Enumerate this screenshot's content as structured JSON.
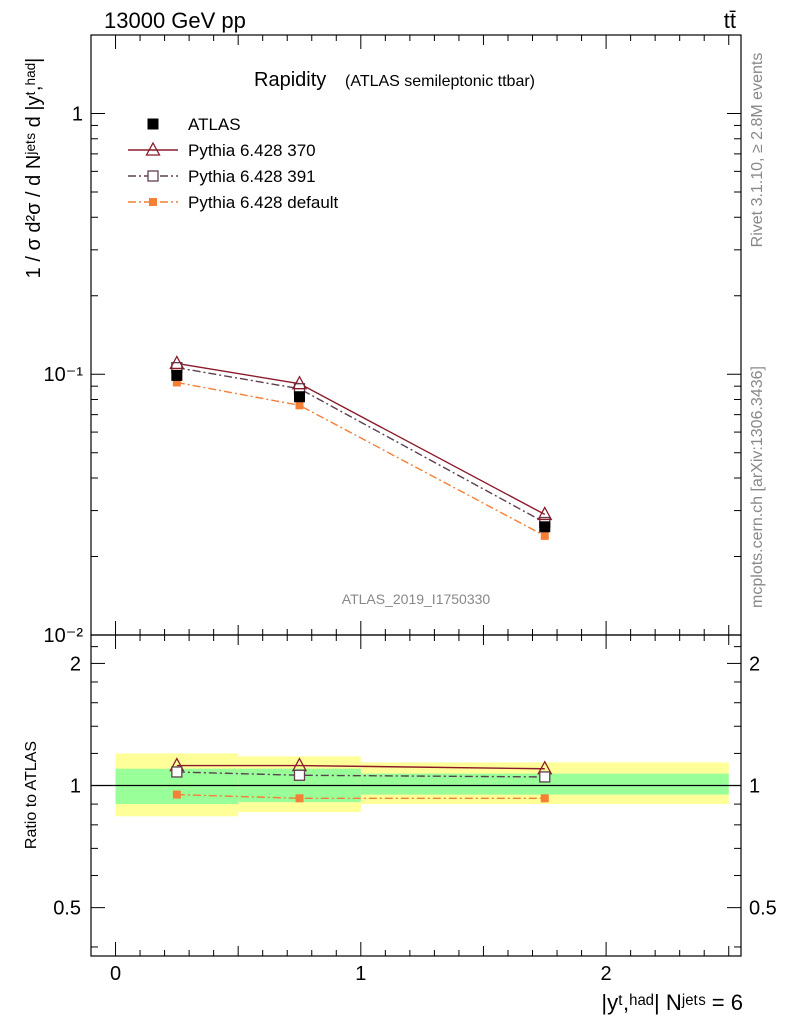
{
  "header": {
    "energy_label": "13000 GeV pp",
    "process_label": "tt̄"
  },
  "right_labels": {
    "rivet": "Rivet 3.1.10, ≥ 2.8M events",
    "mcplots": "mcplots.cern.ch [arXiv:1306.3436]"
  },
  "main_plot": {
    "title": "Rapidity",
    "subtitle": "(ATLAS semileptonic ttbar)",
    "ylabel": "1 / σ d²σ / d Nʲᵉᵗˢ d |yᵗ,ʰᵃᵈ|",
    "watermark": "ATLAS_2019_I1750330",
    "y_ticks": [
      {
        "value": 1,
        "label": "1"
      },
      {
        "value": 0.1,
        "label": "10⁻¹"
      },
      {
        "value": 0.01,
        "label": "10⁻²"
      }
    ]
  },
  "ratio_plot": {
    "ylabel": "Ratio to ATLAS",
    "y_ticks": [
      {
        "value": 2,
        "label": "2"
      },
      {
        "value": 1,
        "label": "1"
      },
      {
        "value": 0.5,
        "label": "0.5"
      }
    ]
  },
  "x_axis": {
    "label": "|yᵗ,ʰᵃᵈ| Nʲᵉᵗˢ = 6",
    "ticks": [
      {
        "value": 0,
        "label": "0"
      },
      {
        "value": 1,
        "label": "1"
      },
      {
        "value": 2,
        "label": "2"
      }
    ]
  },
  "colors": {
    "atlas": "#000000",
    "p370": "#8b1a2b",
    "p391": "#5c4050",
    "pdefault": "#f47f35",
    "band_inner": "#99ff99",
    "band_outer": "#ffff99"
  },
  "chart_data": {
    "type": "scatter",
    "xlim": [
      -0.1,
      2.55
    ],
    "ylim": [
      0.01,
      2.0
    ],
    "yscale": "log",
    "ratio_ylim": [
      0.38,
      2.35
    ],
    "ratio_yscale": "log",
    "legend_position": "top-left",
    "bins": [
      [
        0,
        0.5
      ],
      [
        0.5,
        1.0
      ],
      [
        1.0,
        2.5
      ]
    ],
    "x": [
      0.25,
      0.75,
      1.75
    ],
    "series": [
      {
        "name": "ATLAS",
        "values": [
          0.099,
          0.082,
          0.026
        ],
        "marker": "filled-square",
        "line": "none"
      },
      {
        "name": "Pythia 6.428 370",
        "values": [
          0.11,
          0.092,
          0.029
        ],
        "marker": "open-triangle",
        "line": "solid"
      },
      {
        "name": "Pythia 6.428 391",
        "values": [
          0.106,
          0.088,
          0.027
        ],
        "marker": "open-square",
        "line": "dashdot"
      },
      {
        "name": "Pythia 6.428 default",
        "values": [
          0.093,
          0.076,
          0.024
        ],
        "marker": "filled-small-square",
        "line": "dashdot-orange"
      }
    ],
    "ratio_series": [
      {
        "name": "Pythia 6.428 370",
        "values": [
          1.12,
          1.12,
          1.1
        ]
      },
      {
        "name": "Pythia 6.428 391",
        "values": [
          1.08,
          1.06,
          1.05
        ]
      },
      {
        "name": "Pythia 6.428 default",
        "values": [
          0.95,
          0.93,
          0.93
        ]
      }
    ],
    "uncertainty_bands": {
      "inner": [
        [
          0.9,
          1.1
        ],
        [
          0.91,
          1.1
        ],
        [
          0.95,
          1.07
        ]
      ],
      "outer": [
        [
          0.84,
          1.2
        ],
        [
          0.86,
          1.18
        ],
        [
          0.9,
          1.14
        ]
      ]
    }
  }
}
